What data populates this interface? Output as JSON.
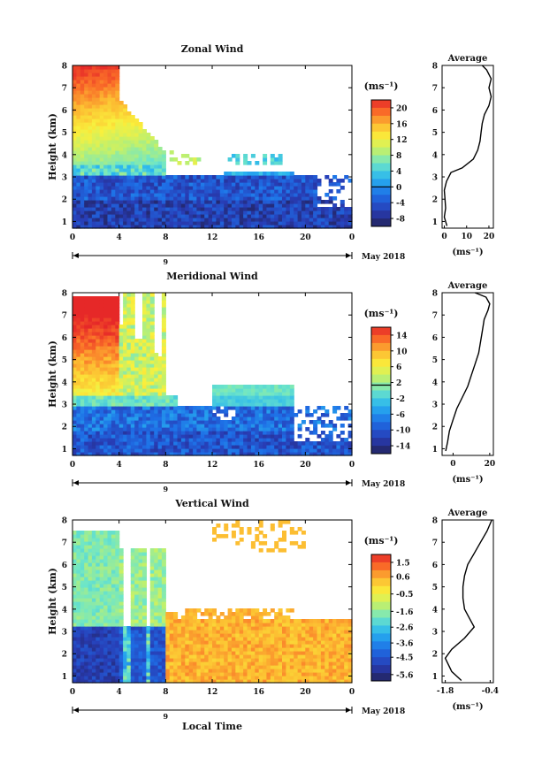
{
  "chart_data": [
    {
      "type": "heatmap",
      "title": "Zonal Wind",
      "ylabel": "Height (km)",
      "y_ticks": [
        "1",
        "2",
        "3",
        "4",
        "5",
        "6",
        "7",
        "8"
      ],
      "ylim": [
        0.7,
        8
      ],
      "x_ticks": [
        "0",
        "4",
        "8",
        "12",
        "16",
        "20",
        "0"
      ],
      "xlim": [
        0,
        24
      ],
      "date_label": "9",
      "month_label": "May 2018",
      "colorbar": {
        "unit": "(ms⁻¹)",
        "ticks": [
          "20",
          "16",
          "12",
          "8",
          "4",
          "0",
          "-4",
          "-8"
        ],
        "range": [
          -10,
          22
        ]
      },
      "profile": {
        "title": "Average",
        "x_ticks": [
          "0",
          "10",
          "20"
        ],
        "xlim": [
          -1,
          22
        ],
        "xlabel": "(ms⁻¹)",
        "points": [
          [
            1.2,
            0.8
          ],
          [
            0,
            1.2
          ],
          [
            0.6,
            1.6
          ],
          [
            0.3,
            2.0
          ],
          [
            0,
            2.4
          ],
          [
            1,
            2.8
          ],
          [
            3,
            3.2
          ],
          [
            8,
            3.4
          ],
          [
            13,
            3.8
          ],
          [
            15,
            4.2
          ],
          [
            16,
            4.6
          ],
          [
            16.5,
            5.0
          ],
          [
            17,
            5.4
          ],
          [
            18,
            5.8
          ],
          [
            20,
            6.2
          ],
          [
            21,
            6.6
          ],
          [
            20,
            7.0
          ],
          [
            21,
            7.4
          ],
          [
            19,
            7.8
          ],
          [
            17,
            8.0
          ]
        ]
      }
    },
    {
      "type": "heatmap",
      "title": "Meridional Wind",
      "ylabel": "Height (km)",
      "y_ticks": [
        "1",
        "2",
        "3",
        "4",
        "5",
        "6",
        "7",
        "8"
      ],
      "ylim": [
        0.7,
        8
      ],
      "x_ticks": [
        "0",
        "4",
        "8",
        "12",
        "16",
        "20",
        "0"
      ],
      "xlim": [
        0,
        24
      ],
      "date_label": "9",
      "month_label": "May 2018",
      "colorbar": {
        "unit": "(ms⁻¹)",
        "ticks": [
          "14",
          "10",
          "6",
          "2",
          "-2",
          "-6",
          "-10",
          "-14"
        ],
        "range": [
          -16,
          16
        ]
      },
      "profile": {
        "title": "Average",
        "x_ticks": [
          "0",
          "20"
        ],
        "xlim": [
          -6,
          22
        ],
        "xlabel": "(ms⁻¹)",
        "points": [
          [
            -4,
            0.9
          ],
          [
            -3,
            1.3
          ],
          [
            -2,
            1.8
          ],
          [
            0,
            2.3
          ],
          [
            2,
            2.8
          ],
          [
            5,
            3.3
          ],
          [
            8,
            3.8
          ],
          [
            10,
            4.3
          ],
          [
            12,
            4.8
          ],
          [
            14,
            5.3
          ],
          [
            15,
            5.8
          ],
          [
            16,
            6.3
          ],
          [
            17,
            6.8
          ],
          [
            19,
            7.2
          ],
          [
            20,
            7.5
          ],
          [
            18,
            7.8
          ],
          [
            12,
            8.0
          ]
        ]
      }
    },
    {
      "type": "heatmap",
      "title": "Vertical Wind",
      "ylabel": "Height (km)",
      "xlabel": "Local Time",
      "y_ticks": [
        "1",
        "2",
        "3",
        "4",
        "5",
        "6",
        "7",
        "8"
      ],
      "ylim": [
        0.7,
        8
      ],
      "x_ticks": [
        "0",
        "4",
        "8",
        "12",
        "16",
        "20",
        "0"
      ],
      "xlim": [
        0,
        24
      ],
      "date_label": "9",
      "month_label": "May 2018",
      "colorbar": {
        "unit": "(ms⁻¹)",
        "ticks": [
          "1.5",
          "0.6",
          "-0.5",
          "-1.6",
          "-2.6",
          "-3.6",
          "-4.5",
          "-5.6"
        ],
        "range": [
          -6,
          2
        ]
      },
      "profile": {
        "title": "Average",
        "x_ticks": [
          "-1.8",
          "-0.4"
        ],
        "xlim": [
          -1.9,
          -0.3
        ],
        "xlabel": "(ms⁻¹)",
        "points": [
          [
            -1.3,
            0.8
          ],
          [
            -1.6,
            1.2
          ],
          [
            -1.8,
            1.8
          ],
          [
            -1.6,
            2.2
          ],
          [
            -1.2,
            2.7
          ],
          [
            -0.9,
            3.2
          ],
          [
            -1.05,
            3.6
          ],
          [
            -1.2,
            4.0
          ],
          [
            -1.25,
            4.5
          ],
          [
            -1.25,
            5.0
          ],
          [
            -1.2,
            5.5
          ],
          [
            -1.1,
            6.0
          ],
          [
            -0.9,
            6.5
          ],
          [
            -0.7,
            7.0
          ],
          [
            -0.5,
            7.5
          ],
          [
            -0.35,
            8.0
          ]
        ]
      }
    }
  ]
}
